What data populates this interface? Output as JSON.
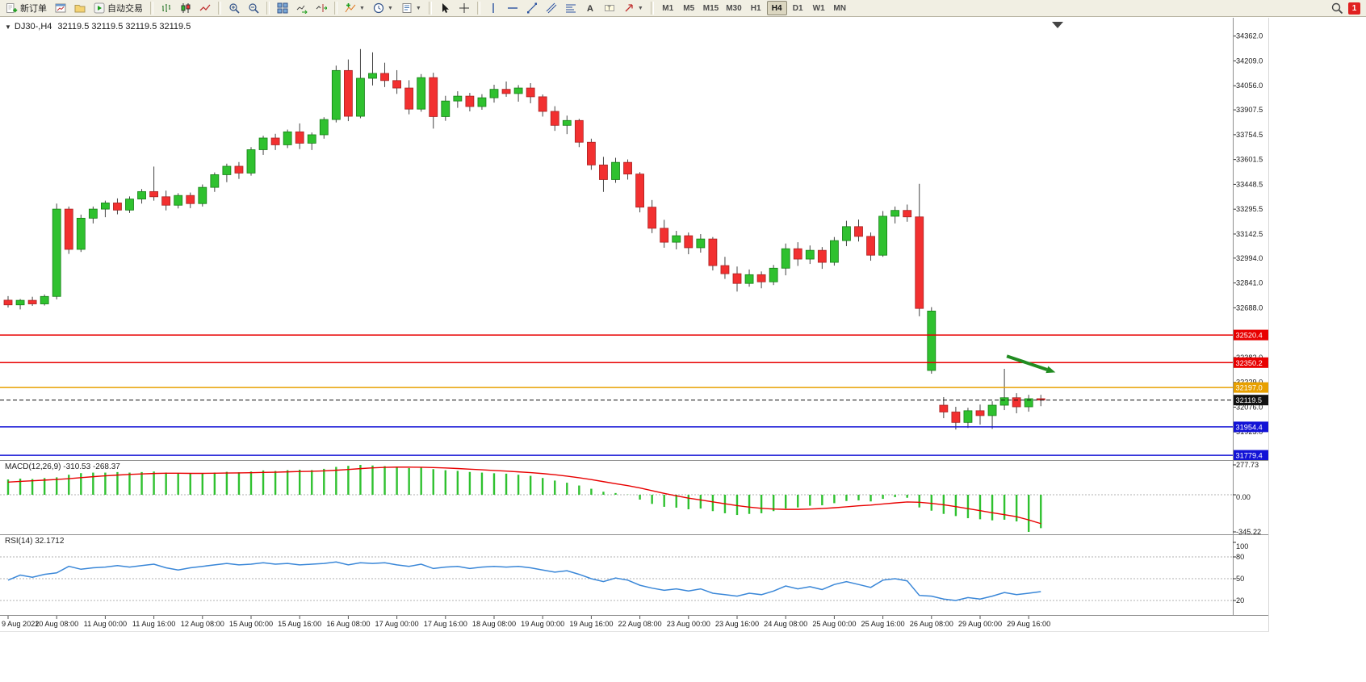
{
  "toolbar": {
    "new_order_label": "新订单",
    "autotrading_label": "自动交易",
    "timeframes": [
      "M1",
      "M5",
      "M15",
      "M30",
      "H1",
      "H4",
      "D1",
      "W1",
      "MN"
    ],
    "active_timeframe": "H4",
    "notification_badge": "1",
    "icons": [
      "new-order",
      "new-chart",
      "profiles",
      "autotrading",
      "bar-chart",
      "candlestick-chart",
      "line-chart",
      "zoom-in",
      "zoom-out",
      "tile-windows",
      "auto-scroll",
      "chart-shift",
      "indicators",
      "periods",
      "templates",
      "cursor",
      "crosshair",
      "vertical-line",
      "horizontal-line",
      "trendline",
      "equidistant-channel",
      "fibonacci-retracement",
      "text",
      "text-label",
      "arrow-objects",
      "search",
      "notifications"
    ]
  },
  "chart_header": {
    "collapse_arrow": "▼",
    "symbol_period": "DJ30-,H4",
    "ohlc": "32119.5 32119.5 32119.5 32119.5"
  },
  "indicator_labels": {
    "macd": "MACD(12,26,9) -310.53 -268.37",
    "rsi": "RSI(14) 32.1712"
  },
  "chart_data": {
    "type": "candlestick",
    "symbol": "DJ30-",
    "period": "H4",
    "bars_per_label": 4,
    "x_labels": [
      "9 Aug 2022",
      "10 Aug 08:00",
      "11 Aug 00:00",
      "11 Aug 16:00",
      "12 Aug 08:00",
      "15 Aug 00:00",
      "15 Aug 16:00",
      "16 Aug 08:00",
      "17 Aug 00:00",
      "17 Aug 16:00",
      "18 Aug 08:00",
      "19 Aug 00:00",
      "19 Aug 16:00",
      "22 Aug 08:00",
      "23 Aug 00:00",
      "23 Aug 16:00",
      "24 Aug 08:00",
      "25 Aug 00:00",
      "25 Aug 16:00",
      "26 Aug 08:00",
      "29 Aug 00:00",
      "29 Aug 16:00"
    ],
    "price_axis_ticks": [
      34362.0,
      34209.0,
      34056.0,
      33907.5,
      33754.5,
      33601.5,
      33448.5,
      33295.5,
      33142.5,
      32994.0,
      32841.0,
      32688.0,
      32382.0,
      32229.0,
      32076.0,
      31923.0
    ],
    "price_range": [
      31750,
      34455
    ],
    "current_price": 32119.5,
    "levels": [
      {
        "value": 32520.4,
        "label": "32520.4",
        "color": "#e80000",
        "type": "hline"
      },
      {
        "value": 32350.2,
        "label": "32350.2",
        "color": "#e80000",
        "type": "hline"
      },
      {
        "value": 32197.0,
        "label": "32197.0",
        "color": "#e8a000",
        "type": "hline"
      },
      {
        "value": 32119.5,
        "label": "32119.5",
        "color": "#111111",
        "type": "price"
      },
      {
        "value": 31954.4,
        "label": "31954.4",
        "color": "#1313d6",
        "type": "hline"
      },
      {
        "value": 31779.4,
        "label": "31779.4",
        "color": "#1313d6",
        "type": "hline"
      }
    ],
    "colors": {
      "up": "#2fc12f",
      "down": "#f23030",
      "wick": "#444444",
      "background": "#ffffff",
      "axis_text": "#1a1a1a"
    },
    "annotation": {
      "type": "arrow",
      "color": "#218c21",
      "from_bar": 82.2,
      "from_price": 32390,
      "to_bar": 86.2,
      "to_price": 32290
    },
    "bars": [
      [
        32735,
        32760,
        32690,
        32706
      ],
      [
        32706,
        32742,
        32678,
        32734
      ],
      [
        32734,
        32756,
        32700,
        32712
      ],
      [
        32712,
        32770,
        32702,
        32758
      ],
      [
        32758,
        33330,
        32740,
        33296
      ],
      [
        33296,
        33312,
        33020,
        33048
      ],
      [
        33048,
        33262,
        33032,
        33240
      ],
      [
        33240,
        33312,
        33208,
        33296
      ],
      [
        33296,
        33348,
        33246,
        33334
      ],
      [
        33334,
        33362,
        33264,
        33290
      ],
      [
        33290,
        33374,
        33272,
        33358
      ],
      [
        33358,
        33420,
        33330,
        33404
      ],
      [
        33404,
        33558,
        33348,
        33372
      ],
      [
        33372,
        33410,
        33288,
        33320
      ],
      [
        33320,
        33394,
        33300,
        33380
      ],
      [
        33380,
        33398,
        33302,
        33330
      ],
      [
        33330,
        33448,
        33312,
        33430
      ],
      [
        33430,
        33522,
        33402,
        33508
      ],
      [
        33508,
        33576,
        33462,
        33560
      ],
      [
        33560,
        33586,
        33482,
        33518
      ],
      [
        33518,
        33678,
        33502,
        33662
      ],
      [
        33662,
        33748,
        33630,
        33734
      ],
      [
        33734,
        33760,
        33660,
        33692
      ],
      [
        33692,
        33786,
        33672,
        33772
      ],
      [
        33772,
        33824,
        33666,
        33702
      ],
      [
        33702,
        33768,
        33660,
        33754
      ],
      [
        33754,
        33862,
        33730,
        33848
      ],
      [
        33848,
        34180,
        33830,
        34150
      ],
      [
        34150,
        34218,
        33838,
        33868
      ],
      [
        33868,
        34282,
        33856,
        34102
      ],
      [
        34102,
        34262,
        34058,
        34132
      ],
      [
        34132,
        34198,
        34048,
        34088
      ],
      [
        34088,
        34152,
        34006,
        34042
      ],
      [
        34042,
        34090,
        33880,
        33912
      ],
      [
        33912,
        34128,
        33896,
        34106
      ],
      [
        34106,
        34136,
        33792,
        33866
      ],
      [
        33866,
        33994,
        33840,
        33962
      ],
      [
        33962,
        34022,
        33920,
        33992
      ],
      [
        33992,
        34012,
        33898,
        33928
      ],
      [
        33928,
        34004,
        33908,
        33982
      ],
      [
        33982,
        34062,
        33952,
        34034
      ],
      [
        34034,
        34082,
        33988,
        34008
      ],
      [
        34008,
        34060,
        33958,
        34042
      ],
      [
        34042,
        34072,
        33948,
        33988
      ],
      [
        33988,
        34002,
        33866,
        33898
      ],
      [
        33898,
        33930,
        33778,
        33812
      ],
      [
        33812,
        33872,
        33758,
        33842
      ],
      [
        33842,
        33852,
        33678,
        33708
      ],
      [
        33708,
        33730,
        33538,
        33568
      ],
      [
        33568,
        33618,
        33402,
        33478
      ],
      [
        33478,
        33612,
        33458,
        33584
      ],
      [
        33584,
        33602,
        33478,
        33512
      ],
      [
        33512,
        33524,
        33276,
        33308
      ],
      [
        33308,
        33352,
        33148,
        33178
      ],
      [
        33178,
        33230,
        33058,
        33092
      ],
      [
        33092,
        33162,
        33048,
        33132
      ],
      [
        33132,
        33152,
        33018,
        33058
      ],
      [
        33058,
        33142,
        33028,
        33112
      ],
      [
        33112,
        33124,
        32918,
        32948
      ],
      [
        32948,
        33002,
        32866,
        32898
      ],
      [
        32898,
        32942,
        32788,
        32838
      ],
      [
        32838,
        32924,
        32818,
        32892
      ],
      [
        32892,
        32912,
        32808,
        32848
      ],
      [
        32848,
        32952,
        32828,
        32932
      ],
      [
        32932,
        33084,
        32888,
        33052
      ],
      [
        33052,
        33092,
        32946,
        32988
      ],
      [
        32988,
        33072,
        32958,
        33042
      ],
      [
        33042,
        33062,
        32928,
        32968
      ],
      [
        32968,
        33124,
        32948,
        33102
      ],
      [
        33102,
        33224,
        33068,
        33188
      ],
      [
        33188,
        33232,
        33096,
        33128
      ],
      [
        33128,
        33152,
        32978,
        33012
      ],
      [
        33012,
        33284,
        33002,
        33252
      ],
      [
        33252,
        33312,
        33208,
        33288
      ],
      [
        33288,
        33324,
        33218,
        33248
      ],
      [
        33248,
        33452,
        32636,
        32684
      ],
      [
        32302,
        32692,
        32282,
        32668
      ],
      [
        32088,
        32138,
        32008,
        32046
      ],
      [
        32046,
        32078,
        31938,
        31982
      ],
      [
        31982,
        32072,
        31948,
        32054
      ],
      [
        32054,
        32092,
        31968,
        32024
      ],
      [
        32024,
        32112,
        31942,
        32088
      ],
      [
        32088,
        32312,
        32058,
        32134
      ],
      [
        32134,
        32162,
        32038,
        32078
      ],
      [
        32078,
        32152,
        32048,
        32128
      ],
      [
        32128,
        32152,
        32082,
        32119.5
      ]
    ],
    "indicators": {
      "macd": {
        "name": "MACD",
        "params": "12,26,9",
        "value_main": -310.53,
        "value_signal": -268.37,
        "scale_max": 277.73,
        "scale_zero": 0.0,
        "scale_min": -345.22,
        "histogram_color": "#2fc12f",
        "signal_color": "#e80000",
        "histogram": [
          142,
          150,
          146,
          155,
          162,
          186,
          201,
          206,
          206,
          211,
          206,
          211,
          216,
          206,
          196,
          196,
          201,
          206,
          213,
          209,
          216,
          226,
          221,
          229,
          233,
          229,
          241,
          259,
          269,
          277.73,
          272,
          266,
          258,
          248,
          252,
          238,
          228,
          222,
          212,
          206,
          200,
          196,
          186,
          176,
          156,
          132,
          112,
          86,
          56,
          28,
          16,
          2,
          -45,
          -85,
          -112,
          -120,
          -135,
          -128,
          -152,
          -172,
          -188,
          -178,
          -172,
          -152,
          -128,
          -118,
          -102,
          -98,
          -78,
          -58,
          -52,
          -62,
          -38,
          -22,
          -28,
          -118,
          -148,
          -178,
          -198,
          -218,
          -228,
          -238,
          -232,
          -248,
          -345.22,
          -310.53
        ],
        "signal": [
          118,
          124,
          130,
          136,
          142,
          150,
          159,
          168,
          176,
          183,
          189,
          194,
          198,
          200,
          200,
          199,
          199,
          200,
          202,
          203,
          205,
          208,
          210,
          213,
          216,
          218,
          222,
          228,
          235,
          243,
          250,
          255,
          257,
          257,
          256,
          253,
          249,
          244,
          238,
          232,
          226,
          220,
          213,
          206,
          197,
          186,
          173,
          158,
          141,
          122,
          103,
          85,
          63,
          38,
          13,
          -10,
          -31,
          -48,
          -66,
          -84,
          -101,
          -115,
          -126,
          -133,
          -136,
          -136,
          -133,
          -128,
          -121,
          -112,
          -103,
          -96,
          -86,
          -76,
          -67,
          -70,
          -80,
          -93,
          -110,
          -129,
          -148,
          -167,
          -185,
          -204,
          -234,
          -268.37
        ]
      },
      "rsi": {
        "name": "RSI",
        "params": "14",
        "value": 32.1712,
        "line_color": "#3a87d8",
        "levels": [
          80,
          50,
          20
        ],
        "scale_labels": [
          100,
          80,
          50,
          20
        ],
        "values": [
          48,
          55,
          52,
          56,
          58,
          67,
          63,
          65,
          66,
          68,
          66,
          68,
          70,
          65,
          62,
          65,
          67,
          69,
          71,
          69,
          70,
          72,
          70,
          71,
          69,
          70,
          71,
          73,
          69,
          72,
          71,
          72,
          69,
          67,
          70,
          64,
          66,
          67,
          64,
          66,
          67,
          66,
          67,
          65,
          62,
          59,
          61,
          56,
          50,
          46,
          51,
          48,
          41,
          37,
          34,
          36,
          33,
          36,
          30,
          28,
          26,
          30,
          28,
          33,
          40,
          36,
          39,
          35,
          42,
          46,
          42,
          38,
          48,
          50,
          47,
          27,
          26,
          22,
          20,
          24,
          22,
          26,
          31,
          28,
          30,
          32.17
        ]
      }
    }
  }
}
